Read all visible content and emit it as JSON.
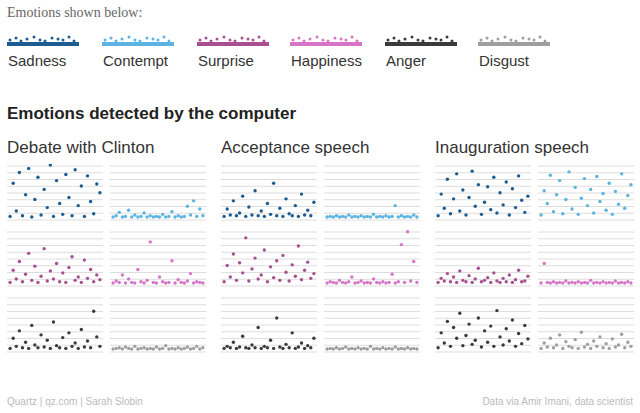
{
  "legend_title": "Emotions shown below:",
  "title": "Emotions detected by the computer",
  "credit": "Quartz | qz.com | Sarah Slobin",
  "source": "Data via Amir Imani, data scientist",
  "chart_data": [
    {
      "type": "scatter",
      "title": "Debate with Clinton",
      "x": [
        1,
        2,
        3,
        4,
        5,
        6,
        7,
        8,
        9,
        10,
        11,
        12,
        13,
        14,
        15,
        16,
        17,
        18,
        19,
        20,
        21,
        22,
        23,
        24,
        25,
        26,
        27,
        28,
        29,
        30
      ],
      "xlim": [
        0,
        31
      ],
      "ylim": [
        0,
        8
      ],
      "yticks": [
        0,
        1,
        2,
        3,
        4,
        5,
        6,
        7,
        8
      ],
      "grid": true,
      "tick_labels": false,
      "marker": "circle",
      "series": [
        {
          "name": "Sadness",
          "color": "#1d5c91",
          "values": [
            0.3,
            5.2,
            1.1,
            6.8,
            0.4,
            3.5,
            7.4,
            0.2,
            2.8,
            6.1,
            0.5,
            4.3,
            1.6,
            7.9,
            0.3,
            5.6,
            2.2,
            0.6,
            6.5,
            3.1,
            0.4,
            7.2,
            1.9,
            4.8,
            0.3,
            6.3,
            2.5,
            0.7,
            5.1,
            3.8
          ]
        },
        {
          "name": "Contempt",
          "color": "#5ab3e0",
          "values": [
            0.2,
            0.4,
            0.9,
            0.2,
            0.3,
            1.2,
            0.2,
            0.5,
            0.2,
            0.3,
            0.8,
            0.2,
            0.4,
            0.2,
            0.3,
            0.2,
            0.6,
            0.2,
            0.3,
            1.0,
            0.2,
            0.4,
            0.2,
            0.3,
            1.8,
            0.5,
            2.6,
            0.3,
            1.4,
            0.4
          ]
        },
        {
          "name": "Surprise",
          "color": "#a8508f",
          "values": [
            0.3,
            2.1,
            0.8,
            3.4,
            0.4,
            1.5,
            4.6,
            0.6,
            2.7,
            0.3,
            1.2,
            5.3,
            0.5,
            2.0,
            0.8,
            3.1,
            0.4,
            1.7,
            0.3,
            2.5,
            4.1,
            0.6,
            1.1,
            0.3,
            3.6,
            0.9,
            2.2,
            0.4,
            1.4,
            0.7
          ]
        },
        {
          "name": "Happiness",
          "color": "#d675c8",
          "values": [
            0.2,
            0.5,
            0.3,
            1.4,
            0.2,
            0.8,
            0.3,
            0.2,
            2.2,
            0.4,
            0.2,
            0.6,
            6.3,
            0.3,
            0.2,
            1.1,
            0.4,
            0.2,
            0.3,
            3.5,
            0.2,
            0.7,
            0.3,
            0.2,
            0.5,
            1.6,
            0.2,
            0.4,
            0.3,
            0.2
          ]
        },
        {
          "name": "Anger",
          "color": "#3b3b3b",
          "values": [
            0.3,
            1.8,
            0.6,
            2.9,
            0.4,
            1.2,
            0.3,
            3.7,
            0.8,
            0.4,
            2.3,
            0.5,
            1.5,
            0.3,
            4.2,
            0.7,
            0.4,
            1.9,
            0.3,
            2.6,
            0.6,
            1.1,
            0.3,
            3.1,
            0.5,
            1.4,
            0.4,
            5.8,
            2.0,
            0.6
          ]
        },
        {
          "name": "Disgust",
          "color": "#9e9e9e",
          "values": [
            0.2,
            0.3,
            0.4,
            0.2,
            0.5,
            0.3,
            0.2,
            0.6,
            0.2,
            0.3,
            0.4,
            0.2,
            0.3,
            0.2,
            0.5,
            0.2,
            0.3,
            0.7,
            0.2,
            0.3,
            0.2,
            0.4,
            0.2,
            0.3,
            0.5,
            0.2,
            0.3,
            0.6,
            0.2,
            0.4
          ]
        }
      ]
    },
    {
      "type": "scatter",
      "title": "Acceptance speech",
      "x": [
        1,
        2,
        3,
        4,
        5,
        6,
        7,
        8,
        9,
        10,
        11,
        12,
        13,
        14,
        15,
        16,
        17,
        18,
        19,
        20,
        21,
        22,
        23,
        24,
        25,
        26,
        27,
        28,
        29,
        30
      ],
      "xlim": [
        0,
        31
      ],
      "ylim": [
        0,
        8
      ],
      "yticks": [
        0,
        1,
        2,
        3,
        4,
        5,
        6,
        7,
        8
      ],
      "grid": true,
      "tick_labels": false,
      "marker": "circle",
      "series": [
        {
          "name": "Sadness",
          "color": "#1d5c91",
          "values": [
            0.3,
            1.4,
            0.5,
            2.6,
            0.4,
            0.8,
            3.3,
            0.3,
            1.7,
            0.5,
            4.1,
            0.4,
            1.1,
            0.3,
            2.2,
            0.6,
            5.2,
            0.4,
            1.5,
            0.3,
            2.9,
            0.7,
            0.4,
            1.9,
            0.3,
            3.6,
            0.5,
            1.2,
            0.4,
            2.4
          ]
        },
        {
          "name": "Contempt",
          "color": "#5ab3e0",
          "values": [
            0.2,
            0.3,
            0.2,
            0.4,
            0.2,
            0.3,
            0.2,
            0.5,
            0.2,
            0.3,
            0.2,
            0.4,
            0.2,
            0.3,
            0.2,
            0.6,
            0.2,
            0.3,
            0.2,
            0.4,
            0.2,
            0.3,
            1.9,
            0.2,
            0.4,
            0.2,
            0.3,
            0.2,
            0.5,
            0.2
          ]
        },
        {
          "name": "Surprise",
          "color": "#a8508f",
          "values": [
            0.4,
            2.8,
            1.1,
            4.5,
            0.6,
            3.2,
            1.7,
            6.9,
            0.5,
            2.3,
            3.9,
            0.8,
            1.4,
            5.1,
            0.4,
            2.6,
            1.0,
            3.5,
            0.6,
            4.3,
            1.8,
            0.5,
            2.9,
            1.2,
            5.7,
            0.7,
            2.1,
            3.3,
            0.9,
            1.6
          ]
        },
        {
          "name": "Happiness",
          "color": "#d675c8",
          "values": [
            0.2,
            0.4,
            0.3,
            0.2,
            0.6,
            0.3,
            0.2,
            0.4,
            1.1,
            0.2,
            0.3,
            0.5,
            0.2,
            0.3,
            0.2,
            0.8,
            0.3,
            0.2,
            0.4,
            0.2,
            0.3,
            1.5,
            0.2,
            0.4,
            5.9,
            0.3,
            7.8,
            0.5,
            3.4,
            0.3
          ]
        },
        {
          "name": "Anger",
          "color": "#3b3b3b",
          "values": [
            0.3,
            0.6,
            0.4,
            1.2,
            0.3,
            0.5,
            2.1,
            0.4,
            0.3,
            0.8,
            0.4,
            3.4,
            0.3,
            0.6,
            0.4,
            1.5,
            0.3,
            4.8,
            0.5,
            0.3,
            0.9,
            0.4,
            2.6,
            0.3,
            0.5,
            1.1,
            0.3,
            0.7,
            0.4,
            1.8
          ]
        },
        {
          "name": "Disgust",
          "color": "#9e9e9e",
          "values": [
            0.2,
            0.3,
            0.2,
            0.4,
            0.2,
            0.3,
            0.5,
            0.2,
            0.3,
            0.2,
            0.4,
            0.2,
            0.3,
            0.2,
            0.6,
            0.2,
            0.3,
            0.2,
            0.4,
            0.2,
            0.3,
            0.2,
            0.5,
            0.2,
            0.3,
            0.2,
            0.4,
            0.2,
            0.3,
            0.2
          ]
        }
      ]
    },
    {
      "type": "scatter",
      "title": "Inauguration speech",
      "x": [
        1,
        2,
        3,
        4,
        5,
        6,
        7,
        8,
        9,
        10,
        11,
        12,
        13,
        14,
        15,
        16,
        17,
        18,
        19,
        20,
        21,
        22,
        23,
        24,
        25,
        26,
        27,
        28,
        29,
        30
      ],
      "xlim": [
        0,
        31
      ],
      "ylim": [
        0,
        8
      ],
      "yticks": [
        0,
        1,
        2,
        3,
        4,
        5,
        6,
        7,
        8
      ],
      "grid": true,
      "tick_labels": false,
      "marker": "circle",
      "series": [
        {
          "name": "Sadness",
          "color": "#1d5c91",
          "values": [
            0.4,
            3.6,
            1.5,
            5.8,
            0.7,
            2.9,
            6.6,
            1.1,
            4.2,
            0.5,
            3.1,
            7.0,
            1.8,
            5.0,
            0.6,
            2.4,
            4.7,
            1.3,
            6.1,
            0.8,
            3.8,
            2.0,
            5.4,
            0.5,
            4.4,
            1.6,
            6.3,
            2.7,
            0.9,
            3.3
          ]
        },
        {
          "name": "Contempt",
          "color": "#5ab3e0",
          "values": [
            0.5,
            4.1,
            2.2,
            6.4,
            1.0,
            3.5,
            5.6,
            0.7,
            2.8,
            6.9,
            1.4,
            4.6,
            0.6,
            3.0,
            5.9,
            1.9,
            4.3,
            0.8,
            6.2,
            2.5,
            3.7,
            1.2,
            5.2,
            0.6,
            4.0,
            2.1,
            6.6,
            1.5,
            3.4,
            5.0
          ]
        },
        {
          "name": "Surprise",
          "color": "#a8508f",
          "values": [
            0.3,
            0.9,
            0.5,
            1.6,
            0.4,
            1.1,
            0.3,
            2.0,
            0.6,
            0.4,
            1.3,
            0.3,
            0.8,
            2.4,
            0.4,
            0.6,
            1.0,
            0.3,
            1.7,
            0.5,
            0.3,
            0.9,
            0.4,
            1.4,
            0.3,
            0.7,
            2.1,
            0.4,
            0.5,
            1.2
          ]
        },
        {
          "name": "Happiness",
          "color": "#d675c8",
          "values": [
            0.2,
            3.1,
            0.3,
            0.2,
            0.4,
            0.2,
            0.3,
            0.2,
            0.5,
            0.2,
            0.3,
            0.2,
            0.4,
            0.2,
            0.3,
            0.2,
            0.6,
            0.2,
            0.3,
            0.2,
            0.4,
            0.2,
            0.3,
            0.2,
            0.5,
            0.2,
            0.3,
            0.2,
            0.4,
            0.2
          ]
        },
        {
          "name": "Anger",
          "color": "#3b3b3b",
          "values": [
            0.4,
            2.6,
            1.1,
            4.3,
            0.6,
            3.4,
            1.8,
            5.5,
            0.7,
            2.2,
            3.9,
            0.9,
            1.5,
            4.8,
            0.5,
            2.9,
            1.2,
            3.6,
            0.6,
            5.9,
            2.0,
            0.8,
            3.2,
            1.4,
            4.5,
            0.6,
            2.5,
            1.0,
            3.7,
            1.7
          ]
        },
        {
          "name": "Disgust",
          "color": "#9e9e9e",
          "values": [
            0.3,
            1.1,
            0.5,
            1.8,
            0.4,
            0.8,
            2.3,
            0.3,
            1.3,
            0.6,
            0.4,
            1.6,
            0.3,
            2.7,
            0.5,
            0.9,
            0.3,
            1.4,
            0.6,
            2.0,
            0.4,
            1.0,
            0.3,
            1.7,
            0.5,
            0.8,
            2.4,
            0.4,
            1.2,
            0.6
          ]
        }
      ]
    }
  ]
}
